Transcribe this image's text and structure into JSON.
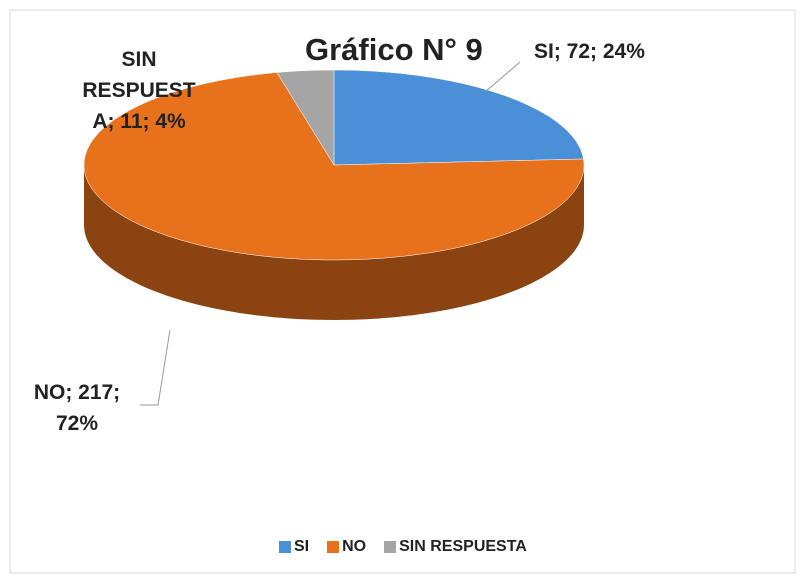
{
  "chart_data": {
    "type": "pie3d",
    "title": "Gráfico N° 9",
    "categories": [
      "SI",
      "NO",
      "SIN RESPUESTA"
    ],
    "values": [
      72,
      217,
      11
    ],
    "value_labels": [
      "SI; 72; 24%",
      "NO; 217; 72%",
      "SIN RESPUESTA; 11; 4%"
    ],
    "colors": [
      "#4a8fd8",
      "#e8711c",
      "#a5a5a5"
    ],
    "legend": "bottom"
  }
}
